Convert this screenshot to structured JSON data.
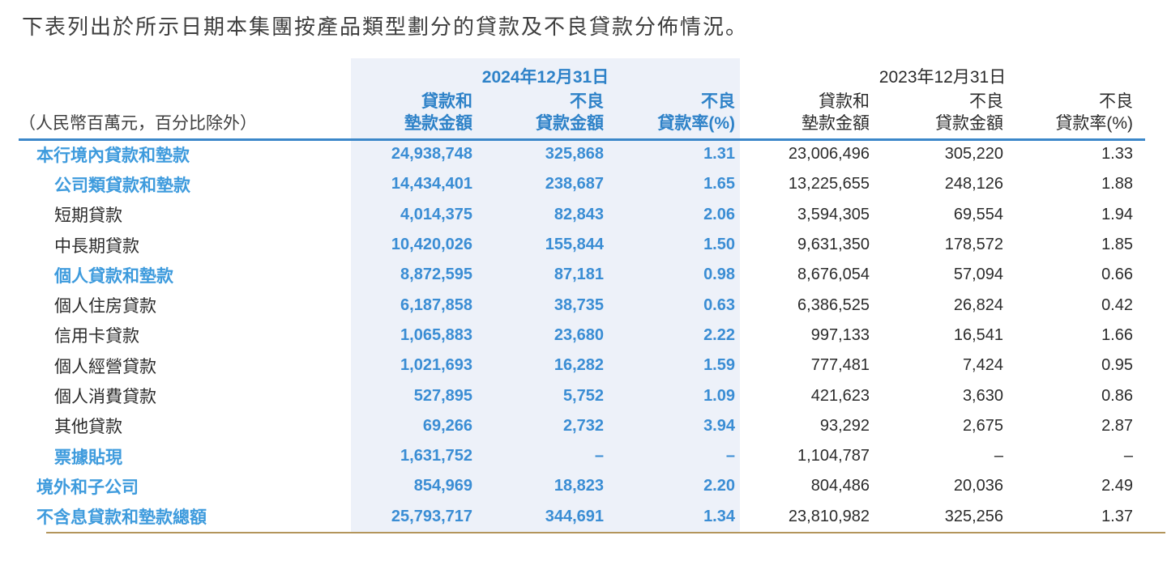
{
  "title": "下表列出於所示日期本集團按產品類型劃分的貸款及不良貸款分佈情況。",
  "unit_note": "（人民幣百萬元，百分比除外）",
  "colors": {
    "highlight_panel": "#edf1f9",
    "accent_blue_text": "#3a8dd4",
    "accent_blue_label": "#3e9bdd",
    "header_blue": "#2e82c8",
    "rule_blue": "#3b87c9",
    "rule_gold": "#b3955b",
    "body_text": "#2b2b2b"
  },
  "columns": {
    "group_2024": {
      "date": "2024年12月31日",
      "amount_l1": "貸款和",
      "amount_l2": "墊款金額",
      "npl_l1": "不良",
      "npl_l2": "貸款金額",
      "rate_l1": "不良",
      "rate_l2": "貸款率(%)"
    },
    "group_2023": {
      "date": "2023年12月31日",
      "amount_l1": "貸款和",
      "amount_l2": "墊款金額",
      "npl_l1": "不良",
      "npl_l2": "貸款金額",
      "rate_l1": "不良",
      "rate_l2": "貸款率(%)"
    }
  },
  "rows": [
    {
      "label": "本行境內貸款和墊款",
      "emphasis": true,
      "indent": 0,
      "y2024": [
        "24,938,748",
        "325,868",
        "1.31"
      ],
      "y2023": [
        "23,006,496",
        "305,220",
        "1.33"
      ]
    },
    {
      "label": "公司類貸款和墊款",
      "emphasis": true,
      "indent": 1,
      "y2024": [
        "14,434,401",
        "238,687",
        "1.65"
      ],
      "y2023": [
        "13,225,655",
        "248,126",
        "1.88"
      ]
    },
    {
      "label": "短期貸款",
      "emphasis": false,
      "indent": 1,
      "y2024": [
        "4,014,375",
        "82,843",
        "2.06"
      ],
      "y2023": [
        "3,594,305",
        "69,554",
        "1.94"
      ]
    },
    {
      "label": "中長期貸款",
      "emphasis": false,
      "indent": 1,
      "y2024": [
        "10,420,026",
        "155,844",
        "1.50"
      ],
      "y2023": [
        "9,631,350",
        "178,572",
        "1.85"
      ]
    },
    {
      "label": "個人貸款和墊款",
      "emphasis": true,
      "indent": 1,
      "y2024": [
        "8,872,595",
        "87,181",
        "0.98"
      ],
      "y2023": [
        "8,676,054",
        "57,094",
        "0.66"
      ]
    },
    {
      "label": "個人住房貸款",
      "emphasis": false,
      "indent": 1,
      "y2024": [
        "6,187,858",
        "38,735",
        "0.63"
      ],
      "y2023": [
        "6,386,525",
        "26,824",
        "0.42"
      ]
    },
    {
      "label": "信用卡貸款",
      "emphasis": false,
      "indent": 1,
      "y2024": [
        "1,065,883",
        "23,680",
        "2.22"
      ],
      "y2023": [
        "997,133",
        "16,541",
        "1.66"
      ]
    },
    {
      "label": "個人經營貸款",
      "emphasis": false,
      "indent": 1,
      "y2024": [
        "1,021,693",
        "16,282",
        "1.59"
      ],
      "y2023": [
        "777,481",
        "7,424",
        "0.95"
      ]
    },
    {
      "label": "個人消費貸款",
      "emphasis": false,
      "indent": 1,
      "y2024": [
        "527,895",
        "5,752",
        "1.09"
      ],
      "y2023": [
        "421,623",
        "3,630",
        "0.86"
      ]
    },
    {
      "label": "其他貸款",
      "emphasis": false,
      "indent": 1,
      "y2024": [
        "69,266",
        "2,732",
        "3.94"
      ],
      "y2023": [
        "93,292",
        "2,675",
        "2.87"
      ]
    },
    {
      "label": "票據貼現",
      "emphasis": true,
      "indent": 1,
      "y2024": [
        "1,631,752",
        "–",
        "–"
      ],
      "y2023": [
        "1,104,787",
        "–",
        "–"
      ]
    },
    {
      "label": "境外和子公司",
      "emphasis": true,
      "indent": 0,
      "y2024": [
        "854,969",
        "18,823",
        "2.20"
      ],
      "y2023": [
        "804,486",
        "20,036",
        "2.49"
      ]
    },
    {
      "label": "不含息貸款和墊款總額",
      "emphasis": true,
      "indent": 0,
      "y2024": [
        "25,793,717",
        "344,691",
        "1.34"
      ],
      "y2023": [
        "23,810,982",
        "325,256",
        "1.37"
      ]
    }
  ]
}
